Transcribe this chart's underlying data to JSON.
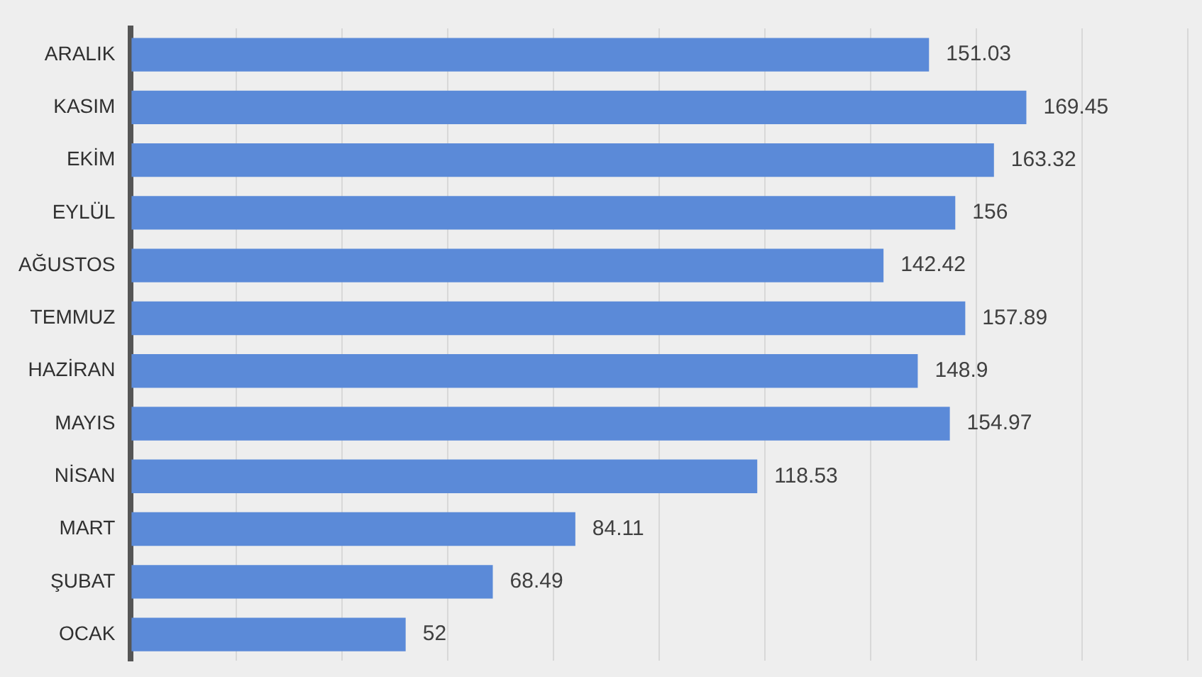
{
  "chart_data": {
    "type": "bar",
    "orientation": "horizontal",
    "categories": [
      "ARALIK",
      "KASIM",
      "EKİM",
      "EYLÜL",
      "AĞUSTOS",
      "TEMMUZ",
      "HAZİRAN",
      "MAYIS",
      "NİSAN",
      "MART",
      "ŞUBAT",
      "OCAK"
    ],
    "values": [
      151.03,
      169.45,
      163.32,
      156,
      142.42,
      157.89,
      148.9,
      154.97,
      118.53,
      84.11,
      68.49,
      52
    ],
    "color": "#5b8ad8",
    "xlim": [
      0,
      200
    ],
    "xticks": [
      {
        "value": 0,
        "label": null
      },
      {
        "value": 20,
        "label": null
      },
      {
        "value": 40,
        "label": null
      },
      {
        "value": 60,
        "label": null
      },
      {
        "value": 80,
        "label": null
      },
      {
        "value": 100,
        "label": null
      },
      {
        "value": 120,
        "label": null
      },
      {
        "value": 140,
        "label": null
      },
      {
        "value": 160,
        "label": null
      },
      {
        "value": 180,
        "label": null
      },
      {
        "value": 200,
        "label": null
      }
    ],
    "grid": "x",
    "tick_labels": "y",
    "data_labels": true
  }
}
